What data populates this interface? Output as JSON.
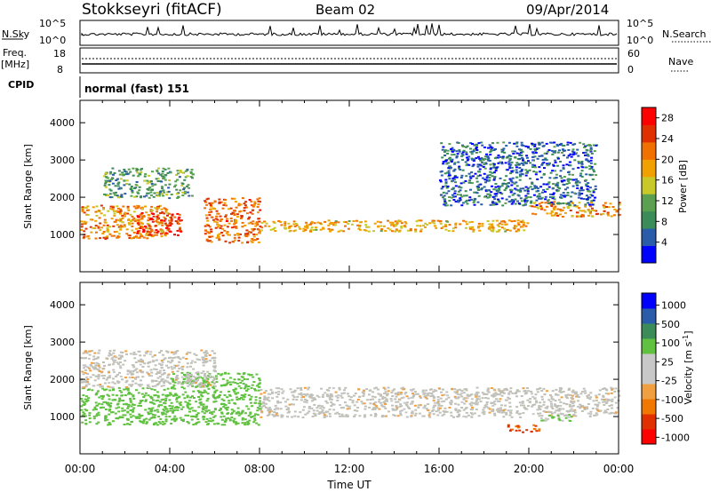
{
  "header": {
    "station": "Stokkseyri (fitACF)",
    "beam": "Beam 02",
    "date": "09/Apr/2014"
  },
  "ts_panels": {
    "nsky_label": "N.Sky",
    "nsky_ticks": [
      "10^5",
      "10^0"
    ],
    "nsearch_label": "N.Search",
    "nsearch_ticks": [
      "10^5",
      "10^0"
    ],
    "freq_label_1": "Freq.",
    "freq_label_2": "[MHz]",
    "freq_ticks": [
      "18",
      "8"
    ],
    "nave_label": "Nave",
    "nave_ticks": [
      "60",
      "0"
    ],
    "cpid_label": "CPID",
    "cpid_value": "normal (fast) 151"
  },
  "colors": {
    "power_scale": [
      "#0000ff",
      "#2a5caa",
      "#3c8c5a",
      "#5aa050",
      "#c8c828",
      "#f0a000",
      "#f07000",
      "#e03000",
      "#ff0000"
    ],
    "velocity_scale": [
      "#ff0000",
      "#e03000",
      "#f07800",
      "#f0a040",
      "#c8c8c8",
      "#c8c8c8",
      "#60c040",
      "#3c8c5a",
      "#2a5caa",
      "#0000ff"
    ],
    "gray_scatter": "#c0c0b8"
  },
  "chart_data": [
    {
      "type": "heatmap",
      "title": "",
      "xlabel": "",
      "ylabel": "Slant Range [km]",
      "x_ticks": [
        "00:00",
        "04:00",
        "08:00",
        "12:00",
        "16:00",
        "20:00",
        "00:00"
      ],
      "x_hours": [
        0,
        4,
        8,
        12,
        16,
        20,
        24
      ],
      "xlim": [
        0,
        24
      ],
      "y_ticks": [
        1000,
        2000,
        3000,
        4000
      ],
      "ylim": [
        0,
        4600
      ],
      "colorbar_label": "Power [dB]",
      "colorbar_ticks": [
        "4",
        "8",
        "12",
        "16",
        "20",
        "24",
        "28"
      ],
      "colorbar_range": [
        0,
        30
      ],
      "features": [
        {
          "from_h": 0.0,
          "to_h": 4.0,
          "range_km": [
            900,
            1800
          ],
          "value": 20
        },
        {
          "from_h": 2.5,
          "to_h": 4.5,
          "range_km": [
            1000,
            1600
          ],
          "value": 26
        },
        {
          "from_h": 5.5,
          "to_h": 8.0,
          "range_km": [
            800,
            2000
          ],
          "value": 22
        },
        {
          "from_h": 8.0,
          "to_h": 20.0,
          "range_km": [
            1100,
            1400
          ],
          "value": 18
        },
        {
          "from_h": 20.0,
          "to_h": 24.0,
          "range_km": [
            1500,
            1900
          ],
          "value": 20
        },
        {
          "from_h": 1.0,
          "to_h": 5.0,
          "range_km": [
            2000,
            2800
          ],
          "value": 10
        },
        {
          "from_h": 16.0,
          "to_h": 23.0,
          "range_km": [
            1800,
            3500
          ],
          "value": 6
        }
      ]
    },
    {
      "type": "heatmap",
      "title": "",
      "xlabel": "Time UT",
      "ylabel": "Slant Range [km]",
      "x_ticks": [
        "00:00",
        "04:00",
        "08:00",
        "12:00",
        "16:00",
        "20:00",
        "00:00"
      ],
      "x_hours": [
        0,
        4,
        8,
        12,
        16,
        20,
        24
      ],
      "xlim": [
        0,
        24
      ],
      "y_ticks": [
        1000,
        2000,
        3000,
        4000
      ],
      "ylim": [
        0,
        4600
      ],
      "colorbar_label": "Velocity [m s^-1]",
      "colorbar_ticks": [
        "1000",
        "500",
        "100",
        "25",
        "-25",
        "-100",
        "-500",
        "-1000"
      ],
      "features": [
        {
          "from_h": 0.0,
          "to_h": 4.0,
          "range_km": [
            800,
            1800
          ],
          "value": 300
        },
        {
          "from_h": 4.0,
          "to_h": 8.0,
          "range_km": [
            800,
            2200
          ],
          "value": 200
        },
        {
          "from_h": 8.0,
          "to_h": 24.0,
          "range_km": [
            1000,
            1800
          ],
          "value": 0
        },
        {
          "from_h": 0.0,
          "to_h": 6.0,
          "range_km": [
            1800,
            2800
          ],
          "value": 0
        },
        {
          "from_h": 19.0,
          "to_h": 20.5,
          "range_km": [
            600,
            800
          ],
          "value": -500
        },
        {
          "from_h": 20.5,
          "to_h": 22.0,
          "range_km": [
            900,
            1100
          ],
          "value": 100
        }
      ]
    }
  ]
}
